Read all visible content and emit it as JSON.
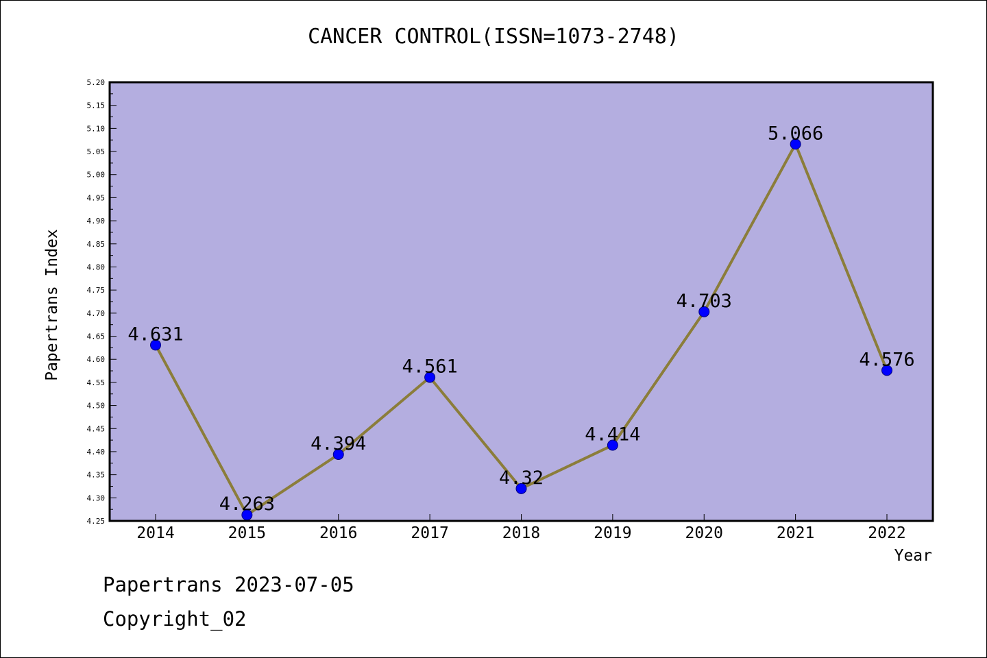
{
  "chart_data": {
    "type": "line",
    "title": "CANCER CONTROL(ISSN=1073-2748)",
    "xlabel": "Year",
    "ylabel": "Papertrans Index",
    "categories": [
      "2014",
      "2015",
      "2016",
      "2017",
      "2018",
      "2019",
      "2020",
      "2021",
      "2022"
    ],
    "values": [
      4.631,
      4.263,
      4.394,
      4.561,
      4.32,
      4.414,
      4.703,
      5.066,
      4.576
    ],
    "data_labels": [
      "4.631",
      "4.263",
      "4.394",
      "4.561",
      "4.32",
      "4.414",
      "4.703",
      "5.066",
      "4.576"
    ],
    "ylim": [
      4.25,
      5.2
    ],
    "ytick_step": 0.05,
    "ytick_labels": [
      "4.25",
      "4.30",
      "4.35",
      "4.40",
      "4.45",
      "4.50",
      "4.55",
      "4.60",
      "4.65",
      "4.70",
      "4.75",
      "4.80",
      "4.85",
      "4.90",
      "4.95",
      "5.00",
      "5.05",
      "5.10",
      "5.15",
      "5.20"
    ],
    "grid": false,
    "legend": "none",
    "colors": {
      "plot_background": "#b4aee0",
      "line": "#8b7d3a",
      "marker": "#0000ff",
      "marker_edge": "#000080"
    }
  },
  "footer": {
    "date_line": "Papertrans 2023-07-05",
    "copyright_line": "Copyright_02"
  }
}
